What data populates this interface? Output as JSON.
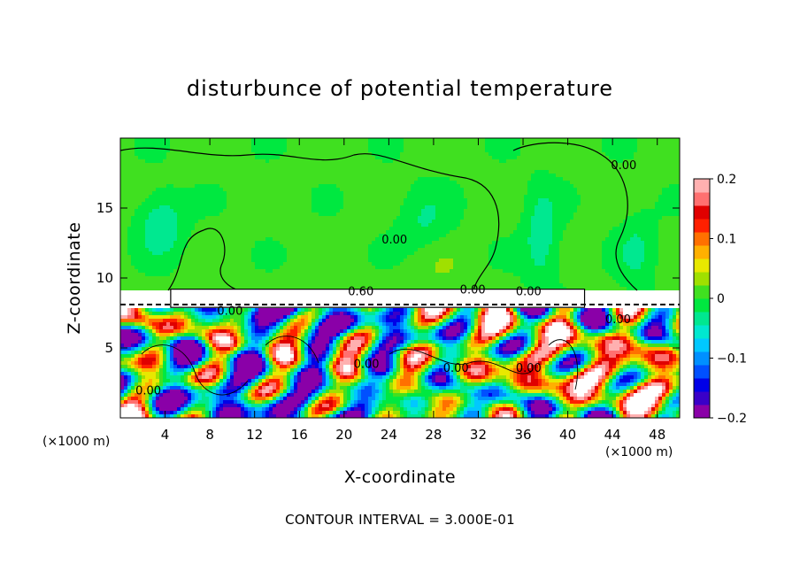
{
  "chart_data": {
    "type": "heatmap",
    "title": "disturbunce of potential temperature",
    "xlabel": "X-coordinate",
    "ylabel": "Z-coordinate",
    "x_unit_label": "(×1000 m)",
    "x_unit_label_right": "(×1000 m)",
    "xlim": [
      0,
      50
    ],
    "ylim": [
      0,
      20
    ],
    "x_ticks": [
      4,
      8,
      12,
      16,
      20,
      24,
      28,
      32,
      36,
      40,
      44,
      48
    ],
    "y_ticks": [
      5,
      10,
      15
    ],
    "colorbar": {
      "range": [
        -0.2,
        0.2
      ],
      "tick_labels": [
        "0.2",
        "0.1",
        "0",
        "−0.1",
        "−0.2"
      ],
      "tick_values": [
        0.2,
        0.1,
        0,
        -0.1,
        -0.2
      ],
      "colors": [
        "#8a00a8",
        "#3a00c8",
        "#0000e8",
        "#0050ff",
        "#0090ff",
        "#00c8ff",
        "#00e8d0",
        "#00e890",
        "#00e840",
        "#40e020",
        "#a0e000",
        "#e8e800",
        "#ffb000",
        "#ff7000",
        "#ff2000",
        "#e00000",
        "#ff7070",
        "#ffb0b0"
      ]
    },
    "contour_labels": [
      {
        "text": "0.00",
        "x": 24.5,
        "z": 12.7
      },
      {
        "text": "0.00",
        "x": 45.0,
        "z": 18.0
      },
      {
        "text": "0.60",
        "x": 21.5,
        "z": 9.0
      },
      {
        "text": "0.00",
        "x": 31.5,
        "z": 9.1
      },
      {
        "text": "0.00",
        "x": 36.5,
        "z": 9.0
      },
      {
        "text": "0.00",
        "x": 9.8,
        "z": 7.6
      },
      {
        "text": "0.00",
        "x": 44.5,
        "z": 7.0
      },
      {
        "text": "0.00",
        "x": 22.0,
        "z": 3.8
      },
      {
        "text": "0.00",
        "x": 30.0,
        "z": 3.5
      },
      {
        "text": "0.00",
        "x": 36.5,
        "z": 3.5
      },
      {
        "text": "0.00",
        "x": 2.5,
        "z": 1.9
      }
    ],
    "contour_interval_text": "CONTOUR INTERVAL = 3.000E-01"
  }
}
